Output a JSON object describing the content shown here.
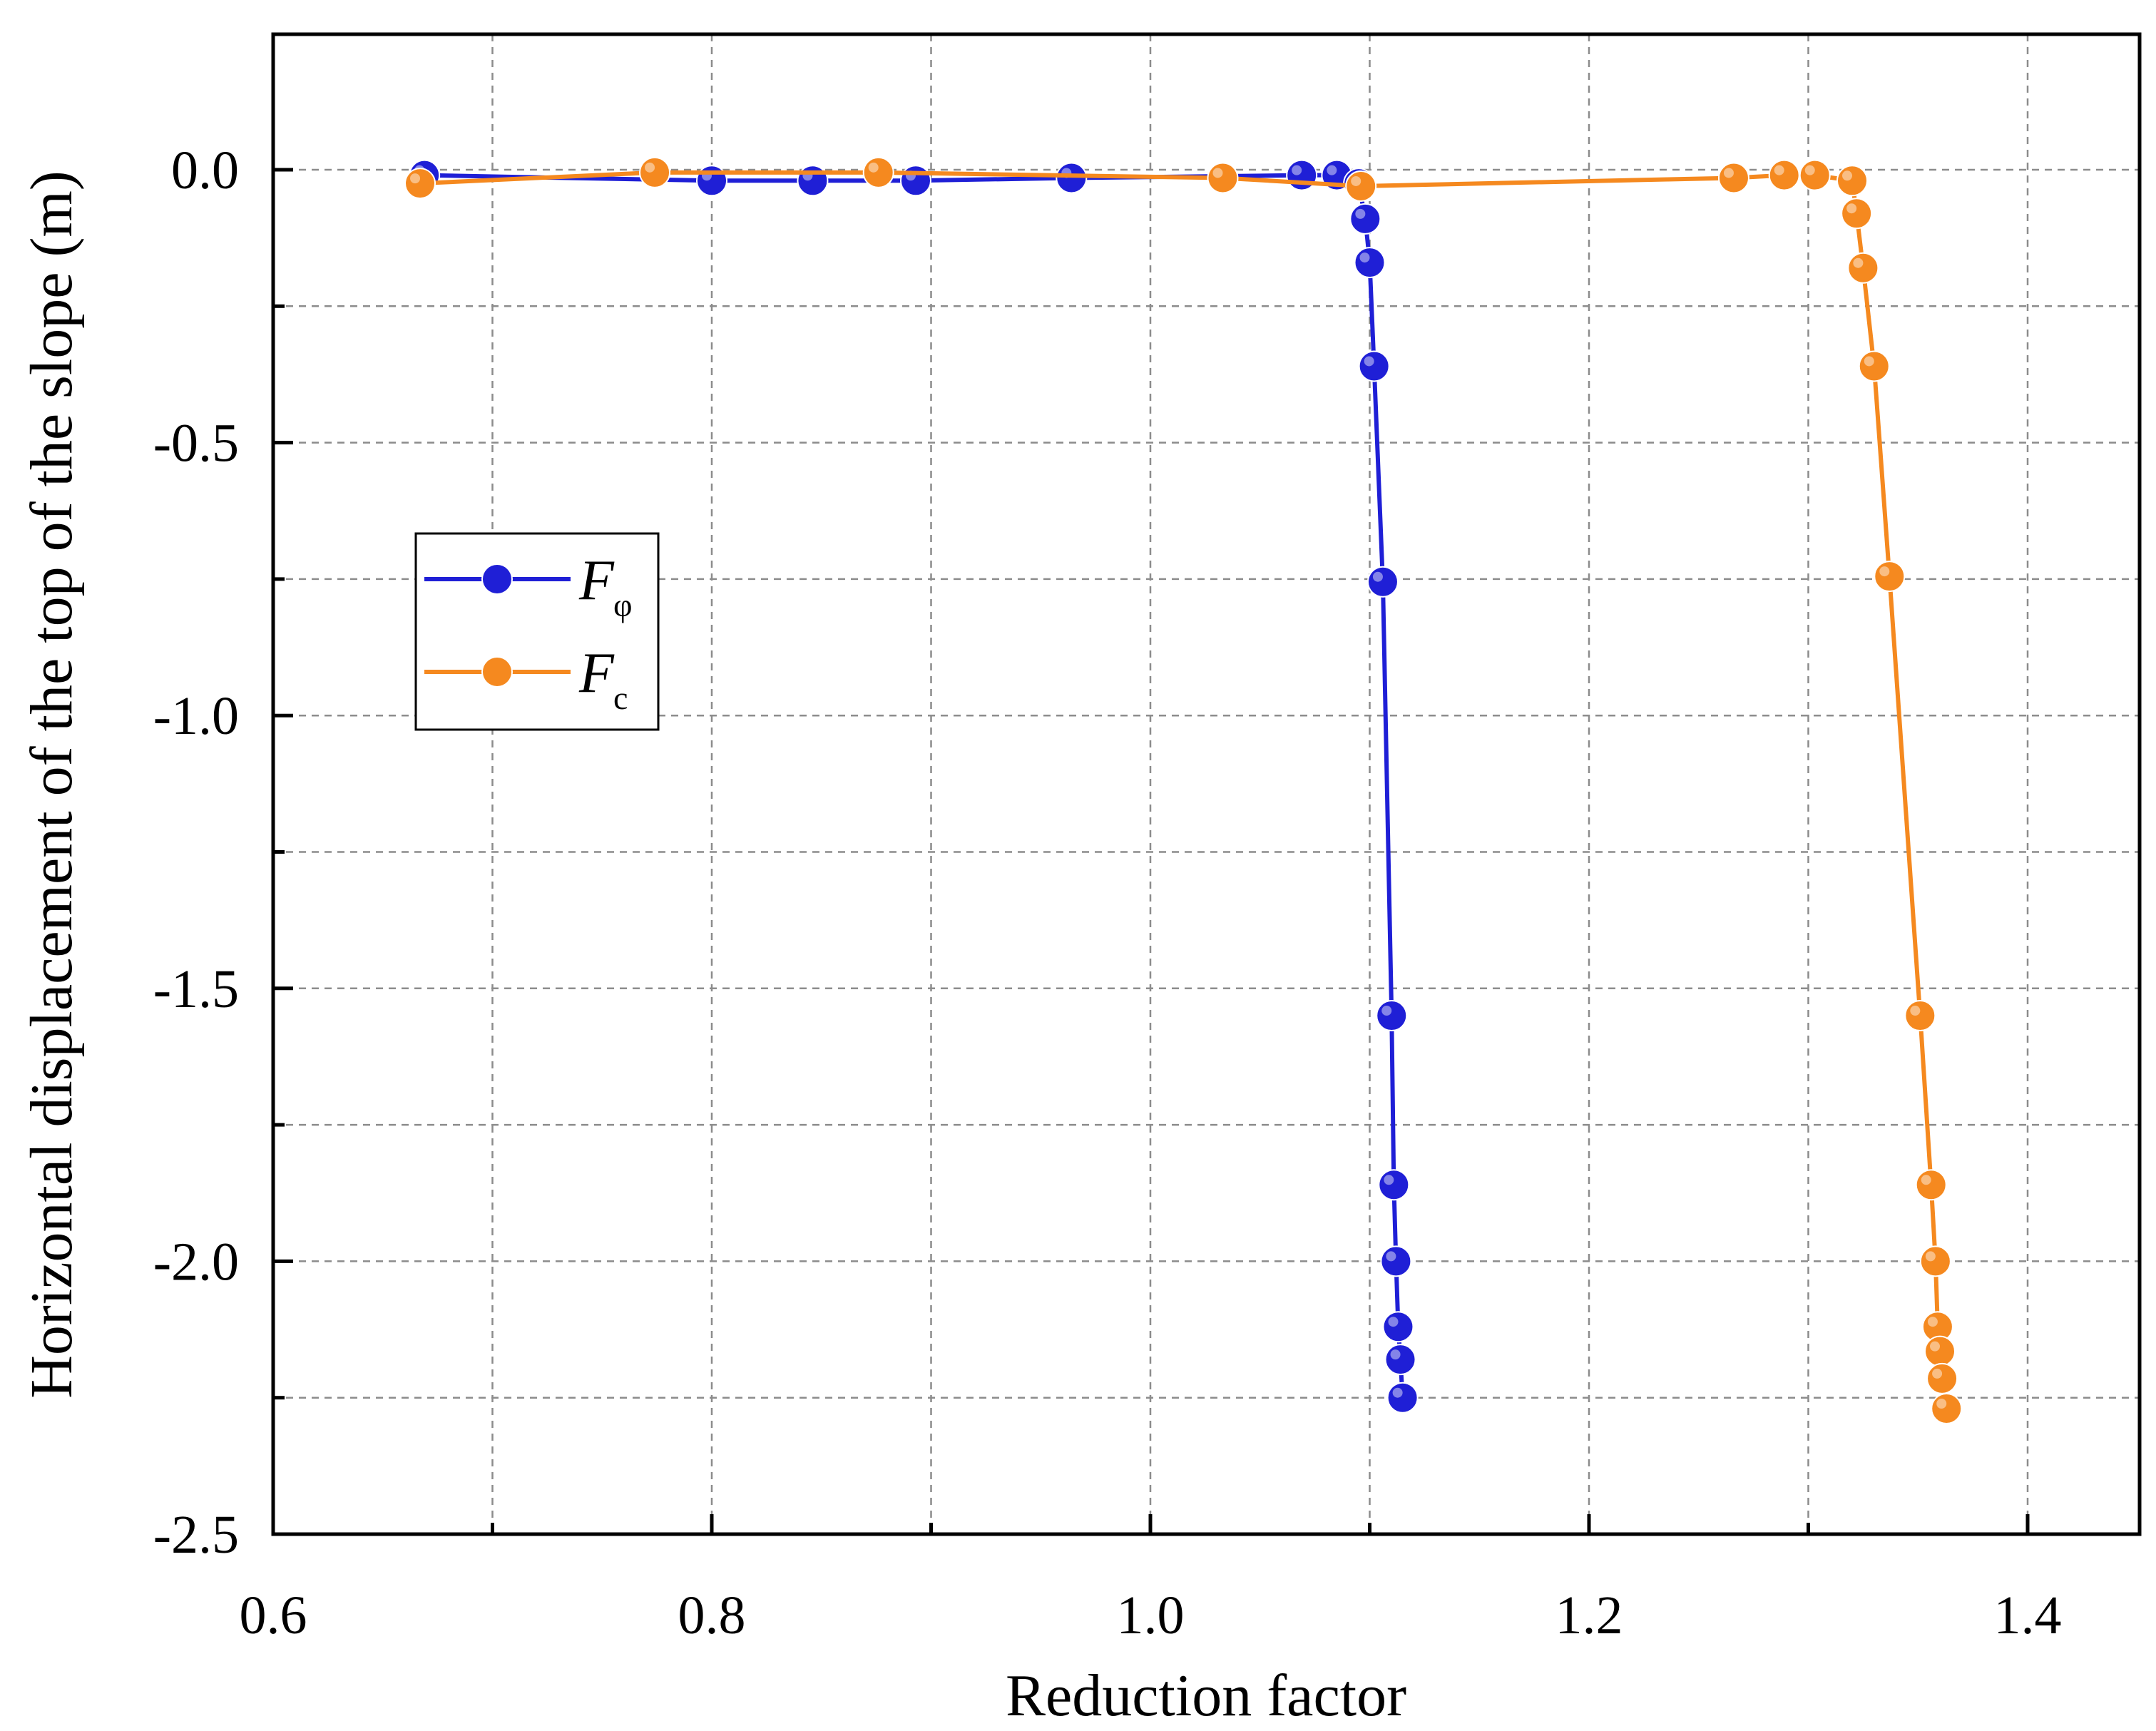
{
  "chart_data": {
    "type": "line",
    "title": "",
    "xlabel": "Reduction factor",
    "ylabel": "Horizontal displacement of the top of the slope (m)",
    "xlim": [
      0.6,
      1.45
    ],
    "ylim": [
      -2.5,
      0.25
    ],
    "xticks": [
      0.6,
      0.8,
      1.0,
      1.2,
      1.4
    ],
    "xtick_labels": [
      "0.6",
      "0.8",
      "1.0",
      "1.2",
      "1.4"
    ],
    "yticks": [
      0.0,
      -0.5,
      -1.0,
      -1.5,
      -2.0,
      -2.5
    ],
    "ytick_labels": [
      "0.0",
      "-0.5",
      "-1.0",
      "-1.5",
      "-2.0",
      "-2.5"
    ],
    "grid": true,
    "legend_position": "center-left",
    "series": [
      {
        "name": "F",
        "subscript": "φ",
        "color": "#1f1fd6",
        "x": [
          0.669,
          0.8,
          0.846,
          0.893,
          0.964,
          1.069,
          1.085,
          1.095,
          1.098,
          1.1,
          1.102,
          1.106,
          1.11,
          1.111,
          1.112,
          1.113,
          1.114,
          1.115
        ],
        "y": [
          -0.01,
          -0.02,
          -0.02,
          -0.02,
          -0.015,
          -0.01,
          -0.01,
          -0.025,
          -0.09,
          -0.17,
          -0.36,
          -0.755,
          -1.55,
          -1.86,
          -2.0,
          -2.12,
          -2.18,
          -2.25
        ]
      },
      {
        "name": "F",
        "subscript": "c",
        "color": "#f5891f",
        "x": [
          0.667,
          0.774,
          0.876,
          1.033,
          1.096,
          1.266,
          1.289,
          1.303,
          1.32,
          1.322,
          1.325,
          1.33,
          1.337,
          1.351,
          1.356,
          1.358,
          1.359,
          1.36,
          1.361,
          1.363
        ],
        "y": [
          -0.025,
          -0.005,
          -0.005,
          -0.015,
          -0.03,
          -0.015,
          -0.01,
          -0.01,
          -0.02,
          -0.08,
          -0.18,
          -0.36,
          -0.745,
          -1.55,
          -1.86,
          -2.0,
          -2.12,
          -2.165,
          -2.215,
          -2.27
        ]
      }
    ]
  }
}
